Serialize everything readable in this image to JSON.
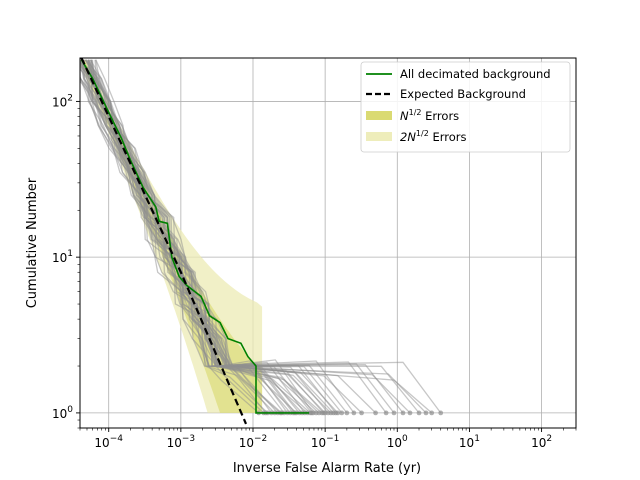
{
  "chart_data": {
    "type": "line",
    "title": "",
    "xlabel": "Inverse False Alarm Rate (yr)",
    "ylabel": "Cumulative Number",
    "xscale": "log",
    "yscale": "log",
    "xlim": [
      4e-05,
      300
    ],
    "ylim": [
      0.8,
      190
    ],
    "grid": true,
    "legend_position": "top-right",
    "x_ticks": [
      {
        "value": 0.0001,
        "base": "10",
        "exp": "−4"
      },
      {
        "value": 0.001,
        "base": "10",
        "exp": "−3"
      },
      {
        "value": 0.01,
        "base": "10",
        "exp": "−2"
      },
      {
        "value": 0.1,
        "base": "10",
        "exp": "−1"
      },
      {
        "value": 1,
        "base": "10",
        "exp": "0"
      },
      {
        "value": 10,
        "base": "10",
        "exp": "1"
      },
      {
        "value": 100,
        "base": "10",
        "exp": "2"
      }
    ],
    "y_ticks": [
      {
        "value": 1,
        "base": "10",
        "exp": "0"
      },
      {
        "value": 10,
        "base": "10",
        "exp": "1"
      },
      {
        "value": 100,
        "base": "10",
        "exp": "2"
      }
    ],
    "series": [
      {
        "name": "All decimated background",
        "style": "solid",
        "color": "#008000",
        "points": [
          [
            4.2e-05,
            185
          ],
          [
            6e-05,
            140
          ],
          [
            0.0001,
            85
          ],
          [
            0.00015,
            58
          ],
          [
            0.0002,
            42
          ],
          [
            0.0003,
            28
          ],
          [
            0.00045,
            21
          ],
          [
            0.0005,
            17
          ],
          [
            0.00065,
            16.5
          ],
          [
            0.00075,
            10
          ],
          [
            0.00095,
            7.5
          ],
          [
            0.0012,
            6.6
          ],
          [
            0.0019,
            5.6
          ],
          [
            0.0025,
            4.2
          ],
          [
            0.0035,
            3.8
          ],
          [
            0.0045,
            3.0
          ],
          [
            0.0068,
            2.8
          ],
          [
            0.0085,
            2.3
          ],
          [
            0.011,
            2.0
          ],
          [
            0.011,
            1.0
          ],
          [
            0.06,
            1.0
          ]
        ]
      },
      {
        "name": "Expected Background",
        "style": "dashed",
        "color": "#000000",
        "points": [
          [
            4.2e-05,
            190
          ],
          [
            0.0001,
            80
          ],
          [
            0.001,
            8
          ],
          [
            0.008,
            0.85
          ]
        ]
      }
    ],
    "bands": [
      {
        "name": "N^{1/2} Errors",
        "legend_math": "N",
        "legend_sup": "1/2",
        "legend_text": " Errors",
        "color": "#d8d86a",
        "opacity": 0.55
      },
      {
        "name": "2N^{1/2} Errors",
        "legend_math": "2N",
        "legend_sup": "1/2",
        "legend_text": " Errors",
        "color": "#ecebb4",
        "opacity": 0.6
      }
    ],
    "background_trials": {
      "count": 45,
      "color": "#909090",
      "endpoint_ifar": [
        0.012,
        0.015,
        0.018,
        0.02,
        0.022,
        0.025,
        0.027,
        0.03,
        0.033,
        0.036,
        0.04,
        0.044,
        0.048,
        0.052,
        0.057,
        0.062,
        0.068,
        0.075,
        0.082,
        0.09,
        0.1,
        0.11,
        0.12,
        0.13,
        0.15,
        0.17,
        0.2,
        0.25,
        0.32,
        0.5,
        0.7,
        0.9,
        1.2,
        1.5,
        2.0,
        2.5,
        3.0,
        4.0,
        0.014,
        0.016,
        0.024,
        0.038,
        0.065,
        0.095,
        0.14
      ]
    }
  }
}
